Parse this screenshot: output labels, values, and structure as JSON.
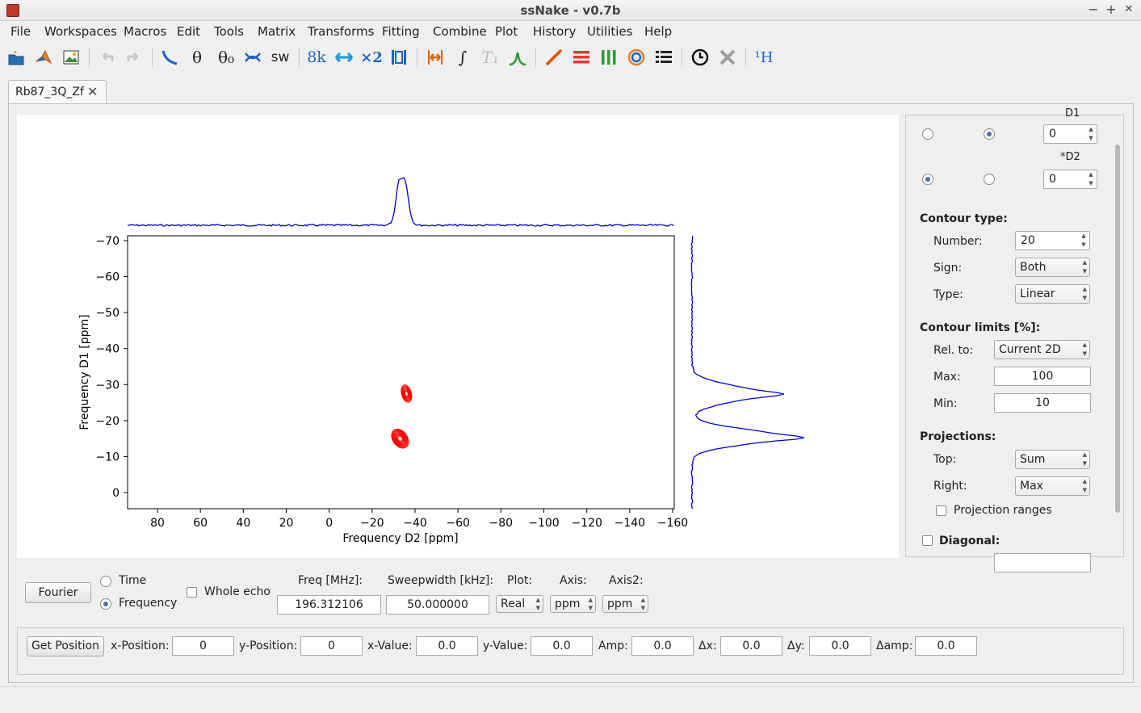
{
  "window": {
    "title": "ssNake - v0.7b",
    "minimize": "−",
    "maximize": "+",
    "close": "✕"
  },
  "menu": [
    "File",
    "Workspaces",
    "Macros",
    "Edit",
    "Tools",
    "Matrix",
    "Transforms",
    "Fitting",
    "Combine",
    "Plot",
    "History",
    "Utilities",
    "Help"
  ],
  "toolbar": {
    "theta": "θ",
    "theta0": "θ₀",
    "sw": "sw",
    "k8": "8k",
    "x2": "×2",
    "integral": "∫",
    "t1": "T₁",
    "nucleus": "¹H"
  },
  "tab": {
    "label": "Rb87_3Q_Zf",
    "close": "✕"
  },
  "plot": {
    "xlabel": "Frequency D2 [ppm]",
    "ylabel": "Frequency D1 [ppm]",
    "xticks": [
      "80",
      "60",
      "40",
      "20",
      "0",
      "−20",
      "−40",
      "−60",
      "−80",
      "−100",
      "−120",
      "−140",
      "−160"
    ],
    "yticks": [
      "−70",
      "−60",
      "−50",
      "−40",
      "−30",
      "−20",
      "−10",
      "0"
    ],
    "contour_color": "#ff0000",
    "projection_color": "#0000cc"
  },
  "panel": {
    "d1_label": "D1",
    "d1_value": "0",
    "d2_label": "*D2",
    "d2_value": "0",
    "contour_type": {
      "header": "Contour type:",
      "number_label": "Number:",
      "number": "20",
      "sign_label": "Sign:",
      "sign": "Both",
      "type_label": "Type:",
      "type": "Linear"
    },
    "contour_limits": {
      "header": "Contour limits [%]:",
      "rel_label": "Rel. to:",
      "rel": "Current 2D",
      "max_label": "Max:",
      "max": "100",
      "min_label": "Min:",
      "min": "10"
    },
    "projections": {
      "header": "Projections:",
      "top_label": "Top:",
      "top": "Sum",
      "right_label": "Right:",
      "right": "Max",
      "ranges_label": "Projection ranges"
    },
    "diagonal_label": "Diagonal:"
  },
  "controls": {
    "fourier": "Fourier",
    "time": "Time",
    "frequency": "Frequency",
    "whole_echo": "Whole echo",
    "freq_label": "Freq [MHz]:",
    "freq_value": "196.312106",
    "sw_label": "Sweepwidth [kHz]:",
    "sw_value": "50.000000",
    "plot_label": "Plot:",
    "plot_value": "Real",
    "axis_label": "Axis:",
    "axis_value": "ppm",
    "axis2_label": "Axis2:",
    "axis2_value": "ppm"
  },
  "status": {
    "get_position": "Get Position",
    "xpos_label": "x-Position:",
    "xpos": "0",
    "ypos_label": "y-Position:",
    "ypos": "0",
    "xval_label": "x-Value:",
    "xval": "0.0",
    "yval_label": "y-Value:",
    "yval": "0.0",
    "amp_label": "Amp:",
    "amp": "0.0",
    "dx_label": "Δx:",
    "dx": "0.0",
    "dy_label": "Δy:",
    "dy": "0.0",
    "damp_label": "Δamp:",
    "damp": "0.0"
  }
}
